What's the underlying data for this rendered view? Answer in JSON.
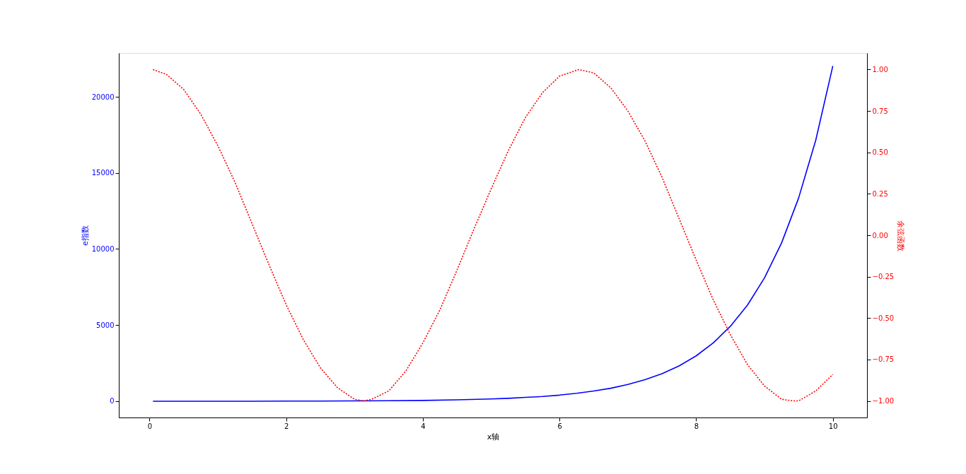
{
  "chart_data": {
    "type": "line",
    "xlabel": "x轴",
    "ylabel": "e指数",
    "y2label": "余弦函数",
    "grid": false,
    "xlim": [
      -0.45,
      10.5
    ],
    "xticks": [
      0,
      2,
      4,
      6,
      8,
      10
    ],
    "ylim": [
      -1070,
      22880
    ],
    "yticks": [
      0,
      5000,
      10000,
      15000,
      20000
    ],
    "y2lim": [
      -1.1,
      1.1
    ],
    "y2ticks": [
      {
        "value": -1,
        "label": "−1.00"
      },
      {
        "value": -0.75,
        "label": "−0.75"
      },
      {
        "value": -0.5,
        "label": "−0.50"
      },
      {
        "value": -0.25,
        "label": "−0.25"
      },
      {
        "value": 0,
        "label": "0.00"
      },
      {
        "value": 0.25,
        "label": "0.25"
      },
      {
        "value": 0.5,
        "label": "0.50"
      },
      {
        "value": 0.75,
        "label": "0.75"
      },
      {
        "value": 1,
        "label": "1.00"
      }
    ],
    "series": [
      {
        "color": "#0000ff",
        "line_style": "solid",
        "axis": "y",
        "x": [
          0.05,
          0.5,
          1,
          1.5,
          2,
          2.5,
          3,
          3.5,
          4,
          4.5,
          5,
          5.25,
          5.5,
          5.75,
          6,
          6.25,
          6.5,
          6.75,
          7,
          7.25,
          7.5,
          7.75,
          8,
          8.25,
          8.5,
          8.75,
          9,
          9.25,
          9.5,
          9.75,
          10
        ],
        "values": [
          0,
          0,
          0,
          0,
          10,
          10,
          20,
          30,
          50,
          90,
          150,
          190,
          250,
          310,
          400,
          520,
          670,
          850,
          1100,
          1410,
          1810,
          2320,
          2980,
          3830,
          4920,
          6310,
          8100,
          10400,
          13360,
          17150,
          22030
        ]
      },
      {
        "color": "#ff0000",
        "line_style": "dotted",
        "axis": "y2",
        "x": [
          0.05,
          0.25,
          0.5,
          0.75,
          1,
          1.25,
          1.5,
          1.75,
          2,
          2.25,
          2.5,
          2.75,
          3,
          3.14,
          3.25,
          3.5,
          3.75,
          4,
          4.25,
          4.5,
          4.75,
          5,
          5.25,
          5.5,
          5.75,
          6,
          6.28,
          6.5,
          6.75,
          7,
          7.25,
          7.5,
          7.75,
          8,
          8.25,
          8.5,
          8.75,
          9,
          9.25,
          9.42,
          9.5,
          9.75,
          10
        ],
        "values": [
          1.0,
          0.97,
          0.88,
          0.73,
          0.54,
          0.32,
          0.07,
          -0.18,
          -0.42,
          -0.63,
          -0.8,
          -0.92,
          -0.99,
          -1.0,
          -0.99,
          -0.94,
          -0.82,
          -0.65,
          -0.45,
          -0.21,
          0.04,
          0.28,
          0.51,
          0.71,
          0.86,
          0.96,
          1.0,
          0.98,
          0.89,
          0.75,
          0.57,
          0.35,
          0.1,
          -0.15,
          -0.39,
          -0.6,
          -0.78,
          -0.91,
          -0.99,
          -1.0,
          -1.0,
          -0.94,
          -0.84
        ]
      }
    ]
  }
}
